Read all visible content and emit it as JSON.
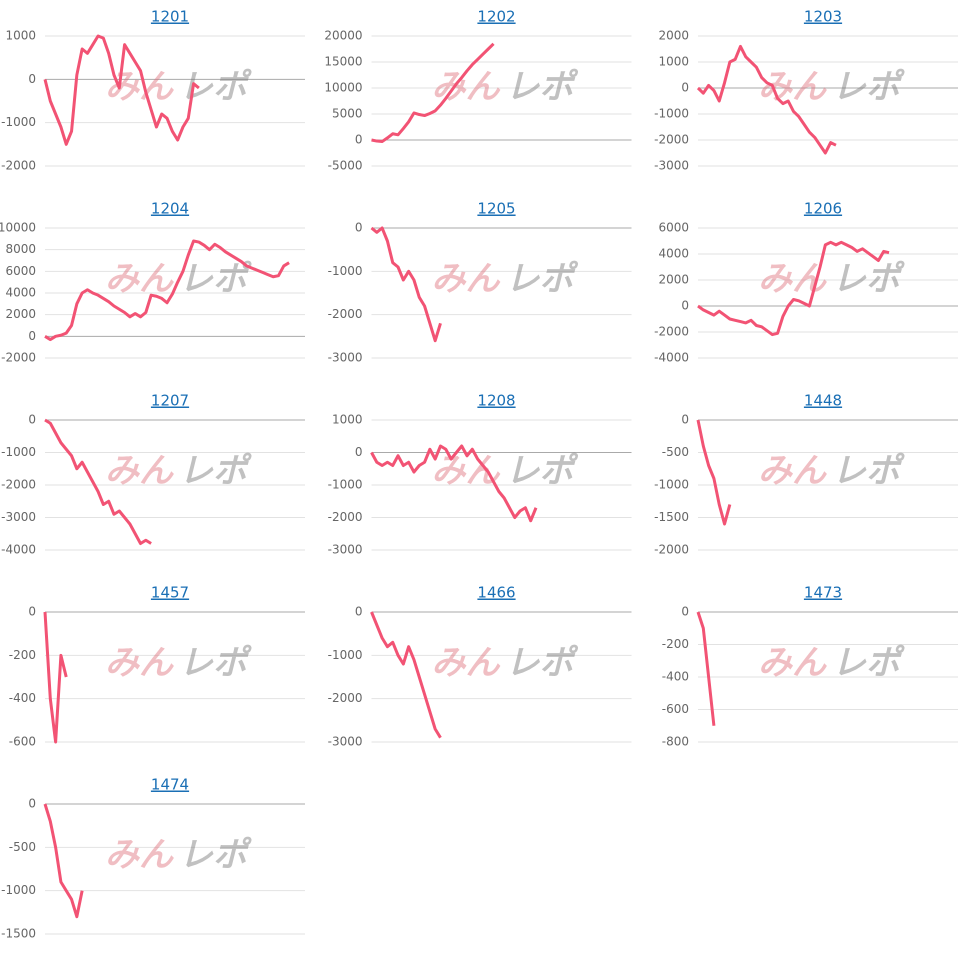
{
  "watermark": {
    "left": "みん",
    "right": "レポ"
  },
  "chart_data": [
    {
      "type": "line",
      "title": "1201",
      "color": "#f25374",
      "xlim": [
        0,
        49
      ],
      "ylim": [
        -2000,
        1000
      ],
      "yticks": [
        -2000,
        -1000,
        0,
        1000
      ],
      "values": [
        0,
        -500,
        -800,
        -1100,
        -1500,
        -1200,
        100,
        700,
        600,
        800,
        1000,
        950,
        600,
        100,
        -200,
        800,
        600,
        400,
        200,
        -300,
        -700,
        -1100,
        -800,
        -900,
        -1200,
        -1400,
        -1100,
        -900,
        -100,
        -200
      ]
    },
    {
      "type": "line",
      "title": "1202",
      "color": "#f25374",
      "xlim": [
        0,
        49
      ],
      "ylim": [
        -5000,
        20000
      ],
      "yticks": [
        -5000,
        0,
        5000,
        10000,
        15000,
        20000
      ],
      "values": [
        0,
        -200,
        -300,
        400,
        1200,
        1000,
        2200,
        3500,
        5200,
        4900,
        4700,
        5100,
        5600,
        6700,
        8000,
        9400,
        10800,
        12000,
        13300,
        14500,
        15500,
        16500,
        17500,
        18500
      ]
    },
    {
      "type": "line",
      "title": "1203",
      "color": "#f25374",
      "xlim": [
        0,
        49
      ],
      "ylim": [
        -3000,
        2000
      ],
      "yticks": [
        -3000,
        -2000,
        -1000,
        0,
        1000,
        2000
      ],
      "values": [
        0,
        -200,
        100,
        -100,
        -500,
        200,
        1000,
        1100,
        1600,
        1200,
        1000,
        800,
        400,
        200,
        100,
        -400,
        -600,
        -500,
        -900,
        -1100,
        -1400,
        -1700,
        -1900,
        -2200,
        -2500,
        -2100,
        -2200
      ]
    },
    {
      "type": "line",
      "title": "1204",
      "color": "#f25374",
      "xlim": [
        0,
        49
      ],
      "ylim": [
        -2000,
        10000
      ],
      "yticks": [
        -2000,
        0,
        2000,
        4000,
        6000,
        8000,
        10000
      ],
      "values": [
        0,
        -300,
        0,
        100,
        300,
        1000,
        3000,
        4000,
        4300,
        4000,
        3800,
        3500,
        3200,
        2800,
        2500,
        2200,
        1800,
        2100,
        1800,
        2200,
        3800,
        3700,
        3500,
        3100,
        3900,
        5000,
        6000,
        7500,
        8800,
        8700,
        8400,
        8000,
        8500,
        8200,
        7800,
        7500,
        7200,
        6900,
        6500,
        6300,
        6100,
        5900,
        5700,
        5500,
        5600,
        6500,
        6800
      ]
    },
    {
      "type": "line",
      "title": "1205",
      "color": "#f25374",
      "xlim": [
        0,
        49
      ],
      "ylim": [
        -3000,
        0
      ],
      "yticks": [
        -3000,
        -2000,
        -1000,
        0
      ],
      "values": [
        0,
        -100,
        0,
        -300,
        -800,
        -900,
        -1200,
        -1000,
        -1200,
        -1600,
        -1800,
        -2200,
        -2600,
        -2200
      ]
    },
    {
      "type": "line",
      "title": "1206",
      "color": "#f25374",
      "xlim": [
        0,
        49
      ],
      "ylim": [
        -4000,
        6000
      ],
      "yticks": [
        -4000,
        -2000,
        0,
        2000,
        4000,
        6000
      ],
      "values": [
        0,
        -300,
        -500,
        -700,
        -400,
        -700,
        -1000,
        -1100,
        -1200,
        -1300,
        -1100,
        -1500,
        -1600,
        -1900,
        -2200,
        -2100,
        -800,
        0,
        500,
        400,
        200,
        0,
        1500,
        3000,
        4700,
        4900,
        4700,
        4900,
        4700,
        4500,
        4200,
        4400,
        4100,
        3800,
        3500,
        4200,
        4100
      ]
    },
    {
      "type": "line",
      "title": "1207",
      "color": "#f25374",
      "xlim": [
        0,
        49
      ],
      "ylim": [
        -4000,
        0
      ],
      "yticks": [
        -4000,
        -3000,
        -2000,
        -1000,
        0
      ],
      "values": [
        0,
        -100,
        -400,
        -700,
        -900,
        -1100,
        -1500,
        -1300,
        -1600,
        -1900,
        -2200,
        -2600,
        -2500,
        -2900,
        -2800,
        -3000,
        -3200,
        -3500,
        -3800,
        -3700,
        -3800
      ]
    },
    {
      "type": "line",
      "title": "1208",
      "color": "#f25374",
      "xlim": [
        0,
        49
      ],
      "ylim": [
        -3000,
        1000
      ],
      "yticks": [
        -3000,
        -2000,
        -1000,
        0,
        1000
      ],
      "values": [
        0,
        -300,
        -400,
        -300,
        -400,
        -100,
        -400,
        -300,
        -600,
        -400,
        -300,
        100,
        -200,
        200,
        100,
        -200,
        0,
        200,
        -100,
        100,
        -200,
        -400,
        -600,
        -900,
        -1200,
        -1400,
        -1700,
        -2000,
        -1800,
        -1700,
        -2100,
        -1700
      ]
    },
    {
      "type": "line",
      "title": "1448",
      "color": "#f25374",
      "xlim": [
        0,
        49
      ],
      "ylim": [
        -2000,
        0
      ],
      "yticks": [
        -2000,
        -1500,
        -1000,
        -500,
        0
      ],
      "values": [
        0,
        -400,
        -700,
        -900,
        -1300,
        -1600,
        -1300
      ]
    },
    {
      "type": "line",
      "title": "1457",
      "color": "#f25374",
      "xlim": [
        0,
        49
      ],
      "ylim": [
        -600,
        0
      ],
      "yticks": [
        -600,
        -400,
        -200,
        0
      ],
      "values": [
        0,
        -400,
        -600,
        -200,
        -300
      ]
    },
    {
      "type": "line",
      "title": "1466",
      "color": "#f25374",
      "xlim": [
        0,
        49
      ],
      "ylim": [
        -3000,
        0
      ],
      "yticks": [
        -3000,
        -2000,
        -1000,
        0
      ],
      "values": [
        0,
        -300,
        -600,
        -800,
        -700,
        -1000,
        -1200,
        -800,
        -1100,
        -1500,
        -1900,
        -2300,
        -2700,
        -2900
      ]
    },
    {
      "type": "line",
      "title": "1473",
      "color": "#f25374",
      "xlim": [
        0,
        49
      ],
      "ylim": [
        -800,
        0
      ],
      "yticks": [
        -800,
        -600,
        -400,
        -200,
        0
      ],
      "values": [
        0,
        -100,
        -400,
        -700
      ]
    },
    {
      "type": "line",
      "title": "1474",
      "color": "#f25374",
      "xlim": [
        0,
        49
      ],
      "ylim": [
        -1500,
        0
      ],
      "yticks": [
        -1500,
        -1000,
        -500,
        0
      ],
      "values": [
        0,
        -200,
        -500,
        -900,
        -1000,
        -1100,
        -1300,
        -1000
      ]
    }
  ]
}
